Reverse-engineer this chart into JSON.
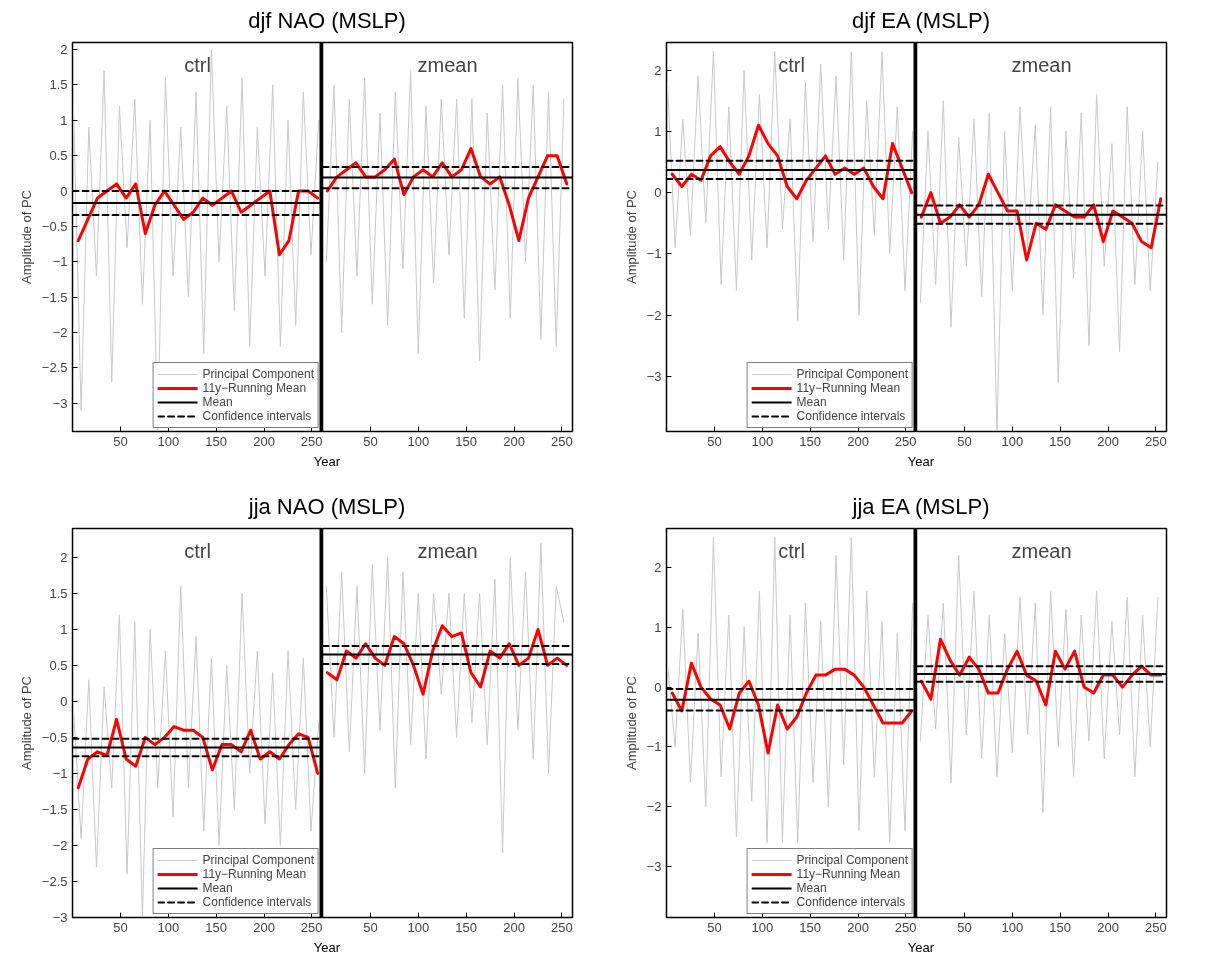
{
  "chart_data": [
    {
      "type": "line",
      "title": "djf NAO (MSLP)",
      "xlabel": "Year",
      "ylabel": "Amplitude of PC",
      "legend": "bottom right",
      "xlim": [
        0,
        261
      ],
      "ylim": [
        -3.4,
        2.1
      ],
      "xticks": [
        50,
        100,
        150,
        200,
        250
      ],
      "yticks": [
        -3,
        -2.5,
        -2,
        -1.5,
        -1,
        -0.5,
        0,
        0.5,
        1,
        1.5,
        2
      ],
      "annotations": [
        "ctrl"
      ],
      "ref_lines": [
        {
          "axis": "x",
          "value": 261,
          "color": "#000000"
        }
      ],
      "x": [
        1,
        9,
        17,
        25,
        33,
        41,
        49,
        57,
        65,
        73,
        81,
        89,
        97,
        105,
        113,
        121,
        129,
        137,
        145,
        153,
        161,
        169,
        177,
        185,
        193,
        201,
        209,
        217,
        225,
        233,
        241,
        249,
        257
      ],
      "series": [
        {
          "name": "Principal Component",
          "color": "#c8c8c8",
          "values": [
            1.2,
            -3.1,
            0.9,
            -1.2,
            1.7,
            -2.7,
            1.2,
            -0.8,
            1.3,
            -1.6,
            1.0,
            -3.4,
            1.6,
            -1.2,
            0.9,
            -1.5,
            1.4,
            -2.3,
            2.0,
            -1.0,
            1.2,
            -1.7,
            1.6,
            -2.2,
            0.9,
            -1.2,
            1.5,
            -2.2,
            1.0,
            -1.9,
            1.4,
            -0.9,
            1.0
          ]
        },
        {
          "name": "11y−Running Mean",
          "color": "#ff0000",
          "x": [
            6,
            16,
            26,
            36,
            46,
            56,
            66,
            76,
            86,
            96,
            106,
            116,
            126,
            136,
            146,
            156,
            166,
            176,
            186,
            196,
            206,
            216,
            226,
            236,
            246,
            256
          ],
          "values": [
            -0.7,
            -0.4,
            -0.1,
            0.0,
            0.1,
            -0.1,
            0.1,
            -0.6,
            -0.2,
            0.0,
            -0.2,
            -0.4,
            -0.3,
            -0.1,
            -0.2,
            -0.1,
            0.0,
            -0.3,
            -0.2,
            -0.1,
            0.0,
            -0.9,
            -0.7,
            0.0,
            0.0,
            -0.1
          ]
        },
        {
          "name": "Mean",
          "color": "#000000",
          "x": [
            0,
            261
          ],
          "values": [
            -0.17,
            -0.17
          ]
        },
        {
          "name": "Confidence intervals",
          "color": "#000000",
          "line_style": "dashed",
          "x": [
            0,
            261
          ],
          "values": [
            0.0,
            0.0
          ]
        },
        {
          "color": "#000000",
          "line_style": "dashed",
          "x": [
            0,
            261
          ],
          "values": [
            -0.34,
            -0.34
          ]
        }
      ]
    },
    {
      "type": "line",
      "tick_labels": "x",
      "xlim": [
        0,
        261
      ],
      "ylim": [
        -3.4,
        2.1
      ],
      "xticks": [
        50,
        100,
        150,
        200,
        250
      ],
      "annotations": [
        "zmean"
      ],
      "x": [
        4,
        12,
        20,
        28,
        36,
        44,
        52,
        60,
        68,
        76,
        84,
        92,
        100,
        108,
        116,
        124,
        132,
        140,
        148,
        156,
        164,
        172,
        180,
        188,
        196,
        204,
        212,
        220,
        228,
        236,
        244,
        252
      ],
      "series": [
        {
          "color": "#c8c8c8",
          "values": [
            -1.0,
            1.5,
            -2.0,
            1.3,
            -1.2,
            1.6,
            -1.6,
            1.1,
            -1.9,
            1.4,
            -1.1,
            1.7,
            -2.3,
            1.2,
            -1.3,
            1.3,
            -0.9,
            1.3,
            -1.8,
            1.3,
            -2.4,
            1.1,
            -1.4,
            1.5,
            -1.8,
            1.6,
            -1.0,
            1.5,
            -2.1,
            1.4,
            -2.2,
            1.3
          ]
        },
        {
          "color": "#ff0000",
          "x": [
            5,
            15,
            25,
            35,
            45,
            55,
            65,
            75,
            85,
            95,
            105,
            115,
            125,
            135,
            145,
            155,
            165,
            175,
            185,
            195,
            205,
            215,
            225,
            235,
            245,
            255
          ],
          "values": [
            0.0,
            0.2,
            0.3,
            0.4,
            0.2,
            0.2,
            0.3,
            0.45,
            -0.05,
            0.2,
            0.3,
            0.2,
            0.4,
            0.2,
            0.3,
            0.6,
            0.2,
            0.1,
            0.2,
            -0.2,
            -0.7,
            -0.1,
            0.2,
            0.5,
            0.5,
            0.1
          ]
        },
        {
          "color": "#000000",
          "x": [
            0,
            261
          ],
          "values": [
            0.19,
            0.19
          ]
        },
        {
          "color": "#000000",
          "line_style": "dashed",
          "x": [
            0,
            261
          ],
          "values": [
            0.34,
            0.34
          ]
        },
        {
          "color": "#000000",
          "line_style": "dashed",
          "x": [
            0,
            261
          ],
          "values": [
            0.04,
            0.04
          ]
        }
      ]
    },
    {
      "type": "line",
      "title": "djf EA (MSLP)",
      "xlabel": "Year",
      "ylabel": "Amplitude of PC",
      "legend": "bottom right",
      "xlim": [
        0,
        261
      ],
      "ylim": [
        -3.9,
        2.45
      ],
      "xticks": [
        50,
        100,
        150,
        200,
        250
      ],
      "yticks": [
        -3,
        -2,
        -1,
        0,
        1,
        2
      ],
      "annotations": [
        "ctrl"
      ],
      "ref_lines": [
        {
          "axis": "x",
          "value": 261,
          "color": "#000000"
        }
      ],
      "x": [
        1,
        9,
        17,
        25,
        33,
        41,
        49,
        57,
        65,
        73,
        81,
        89,
        97,
        105,
        113,
        121,
        129,
        137,
        145,
        153,
        161,
        169,
        177,
        185,
        193,
        201,
        209,
        217,
        225,
        233,
        241,
        249,
        257
      ],
      "series": [
        {
          "name": "Principal Component",
          "color": "#c8c8c8",
          "values": [
            1.8,
            -0.9,
            1.2,
            -0.7,
            1.9,
            -0.5,
            2.3,
            -1.5,
            1.4,
            -1.6,
            2.0,
            -1.1,
            1.6,
            -0.9,
            2.3,
            -0.6,
            1.2,
            -2.1,
            1.8,
            -0.8,
            2.1,
            -0.6,
            1.9,
            -1.1,
            2.3,
            -2.0,
            1.5,
            -0.7,
            2.3,
            -1.0,
            1.4,
            -1.6,
            1.0
          ]
        },
        {
          "name": "11y−Running Mean",
          "color": "#ff0000",
          "x": [
            6,
            16,
            26,
            36,
            46,
            56,
            66,
            76,
            86,
            96,
            106,
            116,
            126,
            136,
            146,
            156,
            166,
            176,
            186,
            196,
            206,
            216,
            226,
            236,
            246,
            256
          ],
          "values": [
            0.3,
            0.1,
            0.3,
            0.2,
            0.6,
            0.75,
            0.5,
            0.3,
            0.6,
            1.1,
            0.8,
            0.6,
            0.1,
            -0.1,
            0.2,
            0.4,
            0.6,
            0.3,
            0.4,
            0.3,
            0.4,
            0.1,
            -0.1,
            0.8,
            0.4,
            0.0
          ]
        },
        {
          "name": "Mean",
          "color": "#000000",
          "x": [
            0,
            261
          ],
          "values": [
            0.37,
            0.37
          ]
        },
        {
          "name": "Confidence intervals",
          "color": "#000000",
          "line_style": "dashed",
          "x": [
            0,
            261
          ],
          "values": [
            0.52,
            0.52
          ]
        },
        {
          "color": "#000000",
          "line_style": "dashed",
          "x": [
            0,
            261
          ],
          "values": [
            0.22,
            0.22
          ]
        }
      ]
    },
    {
      "type": "line",
      "tick_labels": "x",
      "xlim": [
        0,
        261
      ],
      "ylim": [
        -3.9,
        2.45
      ],
      "xticks": [
        50,
        100,
        150,
        200,
        250
      ],
      "annotations": [
        "zmean"
      ],
      "x": [
        4,
        12,
        20,
        28,
        36,
        44,
        52,
        60,
        68,
        76,
        84,
        92,
        100,
        108,
        116,
        124,
        132,
        140,
        148,
        156,
        164,
        172,
        180,
        188,
        196,
        204,
        212,
        220,
        228,
        236,
        244,
        252
      ],
      "series": [
        {
          "color": "#c8c8c8",
          "values": [
            -1.8,
            1.0,
            -1.5,
            1.5,
            -2.2,
            0.9,
            -1.2,
            1.2,
            -1.7,
            1.3,
            -3.9,
            1.0,
            -1.6,
            1.4,
            -0.9,
            1.1,
            -2.0,
            1.4,
            -3.1,
            1.0,
            -1.4,
            1.3,
            -2.5,
            1.6,
            -1.2,
            0.8,
            -2.6,
            1.4,
            -1.5,
            1.0,
            -1.6,
            0.5
          ]
        },
        {
          "color": "#ff0000",
          "x": [
            5,
            15,
            25,
            35,
            45,
            55,
            65,
            75,
            85,
            95,
            105,
            115,
            125,
            135,
            145,
            155,
            165,
            175,
            185,
            195,
            205,
            215,
            225,
            235,
            245,
            255
          ],
          "values": [
            -0.4,
            0.0,
            -0.5,
            -0.4,
            -0.2,
            -0.4,
            -0.2,
            0.3,
            0.0,
            -0.3,
            -0.3,
            -1.1,
            -0.5,
            -0.6,
            -0.2,
            -0.3,
            -0.4,
            -0.4,
            -0.2,
            -0.8,
            -0.3,
            -0.4,
            -0.5,
            -0.8,
            -0.9,
            -0.1
          ]
        },
        {
          "color": "#000000",
          "x": [
            0,
            261
          ],
          "values": [
            -0.36,
            -0.36
          ]
        },
        {
          "color": "#000000",
          "line_style": "dashed",
          "x": [
            0,
            261
          ],
          "values": [
            -0.21,
            -0.21
          ]
        },
        {
          "color": "#000000",
          "line_style": "dashed",
          "x": [
            0,
            261
          ],
          "values": [
            -0.51,
            -0.51
          ]
        }
      ]
    },
    {
      "type": "line",
      "title": "jja NAO (MSLP)",
      "xlabel": "Year",
      "ylabel": "Amplitude of PC",
      "legend": "bottom right",
      "xlim": [
        0,
        261
      ],
      "ylim": [
        -3,
        2.4
      ],
      "xticks": [
        50,
        100,
        150,
        200,
        250
      ],
      "yticks": [
        -3,
        -2.5,
        -2,
        -1.5,
        -1,
        -0.5,
        0,
        0.5,
        1,
        1.5,
        2
      ],
      "annotations": [
        "ctrl"
      ],
      "ref_lines": [
        {
          "axis": "x",
          "value": 261,
          "color": "#000000"
        }
      ],
      "x": [
        1,
        9,
        17,
        25,
        33,
        41,
        49,
        57,
        65,
        73,
        81,
        89,
        97,
        105,
        113,
        121,
        129,
        137,
        145,
        153,
        161,
        169,
        177,
        185,
        193,
        201,
        209,
        217,
        225,
        233,
        241,
        249,
        257
      ],
      "series": [
        {
          "name": "Principal Component",
          "color": "#c8c8c8",
          "values": [
            -0.1,
            -1.9,
            0.3,
            -2.3,
            0.2,
            -1.2,
            1.2,
            -2.4,
            1.1,
            -3.0,
            1.0,
            -1.2,
            0.7,
            -1.6,
            1.6,
            -1.2,
            0.9,
            -1.8,
            0.6,
            -2.0,
            0.5,
            -1.5,
            1.5,
            -1.0,
            0.7,
            -1.7,
            0.4,
            -2.0,
            0.7,
            -1.5,
            0.6,
            -1.8,
            -0.3
          ]
        },
        {
          "name": "11y−Running Mean",
          "color": "#ff0000",
          "x": [
            6,
            16,
            26,
            36,
            46,
            56,
            66,
            76,
            86,
            96,
            106,
            116,
            126,
            136,
            146,
            156,
            166,
            176,
            186,
            196,
            206,
            216,
            226,
            236,
            246,
            256
          ],
          "values": [
            -1.2,
            -0.8,
            -0.7,
            -0.75,
            -0.25,
            -0.8,
            -0.9,
            -0.5,
            -0.6,
            -0.5,
            -0.35,
            -0.4,
            -0.4,
            -0.5,
            -0.95,
            -0.6,
            -0.6,
            -0.7,
            -0.4,
            -0.8,
            -0.7,
            -0.8,
            -0.6,
            -0.45,
            -0.5,
            -1.0
          ]
        },
        {
          "name": "Mean",
          "color": "#000000",
          "x": [
            0,
            261
          ],
          "values": [
            -0.64,
            -0.64
          ]
        },
        {
          "name": "Confidence intervals",
          "color": "#000000",
          "line_style": "dashed",
          "x": [
            0,
            261
          ],
          "values": [
            -0.52,
            -0.52
          ]
        },
        {
          "color": "#000000",
          "line_style": "dashed",
          "x": [
            0,
            261
          ],
          "values": [
            -0.76,
            -0.76
          ]
        }
      ]
    },
    {
      "type": "line",
      "tick_labels": "x",
      "xlim": [
        0,
        261
      ],
      "ylim": [
        -3,
        2.4
      ],
      "xticks": [
        50,
        100,
        150,
        200,
        250
      ],
      "annotations": [
        "zmean"
      ],
      "x": [
        4,
        12,
        20,
        28,
        36,
        44,
        52,
        60,
        68,
        76,
        84,
        92,
        100,
        108,
        116,
        124,
        132,
        140,
        148,
        156,
        164,
        172,
        180,
        188,
        196,
        204,
        212,
        220,
        228,
        236,
        244,
        252
      ],
      "series": [
        {
          "color": "#c8c8c8",
          "values": [
            1.6,
            -0.5,
            1.8,
            -0.7,
            1.6,
            -1.0,
            1.9,
            -0.4,
            2.0,
            -1.2,
            1.8,
            -0.6,
            1.5,
            -0.8,
            1.5,
            0.1,
            1.5,
            -0.5,
            1.5,
            -0.3,
            1.5,
            -0.6,
            1.7,
            -2.1,
            2.0,
            -0.4,
            1.8,
            -0.8,
            2.2,
            -1.0,
            1.6,
            1.1
          ]
        },
        {
          "color": "#ff0000",
          "x": [
            5,
            15,
            25,
            35,
            45,
            55,
            65,
            75,
            85,
            95,
            105,
            115,
            125,
            135,
            145,
            155,
            165,
            175,
            185,
            195,
            205,
            215,
            225,
            235,
            245,
            255
          ],
          "values": [
            0.4,
            0.3,
            0.7,
            0.6,
            0.8,
            0.6,
            0.5,
            0.9,
            0.8,
            0.5,
            0.1,
            0.7,
            1.05,
            0.9,
            0.95,
            0.4,
            0.2,
            0.7,
            0.6,
            0.8,
            0.5,
            0.6,
            1.0,
            0.5,
            0.6,
            0.5
          ]
        },
        {
          "color": "#000000",
          "x": [
            0,
            261
          ],
          "values": [
            0.65,
            0.65
          ]
        },
        {
          "color": "#000000",
          "line_style": "dashed",
          "x": [
            0,
            261
          ],
          "values": [
            0.77,
            0.77
          ]
        },
        {
          "color": "#000000",
          "line_style": "dashed",
          "x": [
            0,
            261
          ],
          "values": [
            0.52,
            0.52
          ]
        }
      ]
    },
    {
      "type": "line",
      "title": "jja EA (MSLP)",
      "xlabel": "Year",
      "ylabel": "Amplitude of PC",
      "legend": "bottom right",
      "xlim": [
        0,
        261
      ],
      "ylim": [
        -3.85,
        2.65
      ],
      "xticks": [
        50,
        100,
        150,
        200,
        250
      ],
      "yticks": [
        -3,
        -2,
        -1,
        0,
        1,
        2
      ],
      "annotations": [
        "ctrl"
      ],
      "ref_lines": [
        {
          "axis": "x",
          "value": 261,
          "color": "#000000"
        }
      ],
      "x": [
        1,
        9,
        17,
        25,
        33,
        41,
        49,
        57,
        65,
        73,
        81,
        89,
        97,
        105,
        113,
        121,
        129,
        137,
        145,
        153,
        161,
        169,
        177,
        185,
        193,
        201,
        209,
        217,
        225,
        233,
        241,
        249,
        257
      ],
      "series": [
        {
          "name": "Principal Component",
          "color": "#c8c8c8",
          "values": [
            0.4,
            -1.0,
            1.3,
            -1.6,
            0.9,
            -2.0,
            2.5,
            -1.5,
            1.2,
            -2.5,
            1.0,
            -1.9,
            1.6,
            -2.6,
            2.5,
            -2.6,
            1.2,
            -2.6,
            1.4,
            -1.6,
            1.1,
            -2.0,
            2.2,
            -1.3,
            2.5,
            -2.4,
            1.6,
            -1.5,
            1.1,
            -2.6,
            0.9,
            -2.4,
            1.4
          ]
        },
        {
          "name": "11y−Running Mean",
          "color": "#ff0000",
          "x": [
            6,
            16,
            26,
            36,
            46,
            56,
            66,
            76,
            86,
            96,
            106,
            116,
            126,
            136,
            146,
            156,
            166,
            176,
            186,
            196,
            206,
            216,
            226,
            236,
            246,
            256
          ],
          "values": [
            -0.1,
            -0.4,
            0.4,
            0.0,
            -0.2,
            -0.3,
            -0.7,
            -0.1,
            0.1,
            -0.3,
            -1.1,
            -0.3,
            -0.7,
            -0.5,
            -0.1,
            0.2,
            0.2,
            0.3,
            0.3,
            0.2,
            0.0,
            -0.3,
            -0.6,
            -0.6,
            -0.6,
            -0.4
          ]
        },
        {
          "name": "Mean",
          "color": "#000000",
          "x": [
            0,
            261
          ],
          "values": [
            -0.21,
            -0.21
          ]
        },
        {
          "name": "Confidence intervals",
          "color": "#000000",
          "line_style": "dashed",
          "x": [
            0,
            261
          ],
          "values": [
            -0.03,
            -0.03
          ]
        },
        {
          "color": "#000000",
          "line_style": "dashed",
          "x": [
            0,
            261
          ],
          "values": [
            -0.39,
            -0.39
          ]
        }
      ]
    },
    {
      "type": "line",
      "tick_labels": "x",
      "xlim": [
        0,
        261
      ],
      "ylim": [
        -3.85,
        2.65
      ],
      "xticks": [
        50,
        100,
        150,
        200,
        250
      ],
      "annotations": [
        "zmean"
      ],
      "x": [
        4,
        12,
        20,
        28,
        36,
        44,
        52,
        60,
        68,
        76,
        84,
        92,
        100,
        108,
        116,
        124,
        132,
        140,
        148,
        156,
        164,
        172,
        180,
        188,
        196,
        204,
        212,
        220,
        228,
        236,
        244,
        252
      ],
      "series": [
        {
          "color": "#c8c8c8",
          "values": [
            -0.9,
            1.2,
            -0.7,
            1.4,
            -1.6,
            2.2,
            -0.8,
            1.6,
            -1.2,
            1.2,
            -1.5,
            0.9,
            -1.1,
            1.5,
            -0.8,
            1.4,
            -2.1,
            1.6,
            -1.0,
            1.3,
            -1.5,
            1.2,
            -0.9,
            1.6,
            -1.2,
            1.1,
            -0.8,
            1.5,
            -1.5,
            1.2,
            -1.0,
            1.5
          ]
        },
        {
          "color": "#ff0000",
          "x": [
            5,
            15,
            25,
            35,
            45,
            55,
            65,
            75,
            85,
            95,
            105,
            115,
            125,
            135,
            145,
            155,
            165,
            175,
            185,
            195,
            205,
            215,
            225,
            235,
            245,
            255
          ],
          "values": [
            0.1,
            -0.2,
            0.8,
            0.45,
            0.2,
            0.5,
            0.3,
            -0.1,
            -0.1,
            0.3,
            0.6,
            0.2,
            0.1,
            -0.3,
            0.6,
            0.3,
            0.6,
            0.0,
            -0.1,
            0.2,
            0.2,
            0.0,
            0.2,
            0.35,
            0.2,
            0.2
          ]
        },
        {
          "color": "#000000",
          "x": [
            0,
            261
          ],
          "values": [
            0.22,
            0.22
          ]
        },
        {
          "color": "#000000",
          "line_style": "dashed",
          "x": [
            0,
            261
          ],
          "values": [
            0.35,
            0.35
          ]
        },
        {
          "color": "#000000",
          "line_style": "dashed",
          "x": [
            0,
            261
          ],
          "values": [
            0.09,
            0.09
          ]
        }
      ]
    }
  ]
}
